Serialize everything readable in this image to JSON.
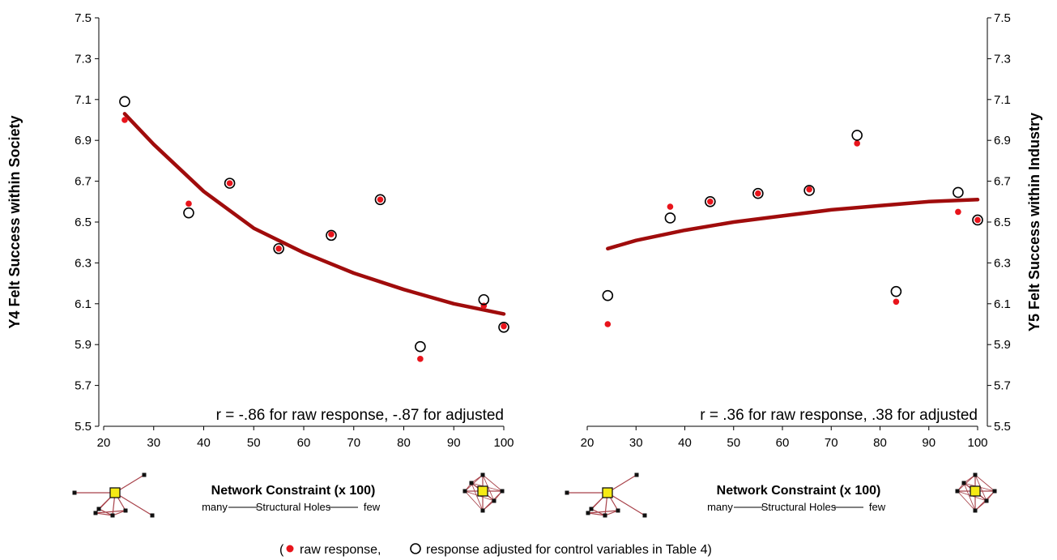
{
  "chart_data": [
    {
      "type": "scatter",
      "ylabel": "Y4 Felt Success within Society",
      "annotation": "r = -.86 for raw response, -.87 for adjusted",
      "x_title": "Network Constraint (x 100)",
      "x_subtitle_left": "many",
      "x_subtitle_mid": "Structural Holes",
      "x_subtitle_right": "few",
      "xlim": [
        20,
        100
      ],
      "ylim": [
        5.5,
        7.5
      ],
      "x_ticks": [
        "20",
        "30",
        "40",
        "50",
        "60",
        "70",
        "80",
        "90",
        "100"
      ],
      "y_ticks": [
        "5.5",
        "5.7",
        "5.9",
        "6.1",
        "6.3",
        "6.5",
        "6.7",
        "6.9",
        "7.1",
        "7.3",
        "7.5"
      ],
      "series": [
        {
          "name": "raw response",
          "marker": "filled-dot",
          "color": "#e8141b",
          "x": [
            24.2,
            37,
            45.2,
            55,
            65.5,
            75.3,
            83.3,
            96,
            100
          ],
          "y": [
            7.0,
            6.59,
            6.69,
            6.37,
            6.44,
            6.61,
            5.83,
            6.09,
            5.99
          ]
        },
        {
          "name": "response adjusted for control variables in Table 4",
          "marker": "open-circle",
          "color": "#000000",
          "x": [
            24.2,
            37,
            45.2,
            55,
            65.5,
            75.3,
            83.3,
            96,
            100
          ],
          "y": [
            7.09,
            6.545,
            6.69,
            6.37,
            6.435,
            6.61,
            5.89,
            6.12,
            5.985
          ]
        }
      ],
      "fit_curve": {
        "color": "#a00c0c",
        "x": [
          24.2,
          30,
          40,
          50,
          60,
          70,
          80,
          90,
          100
        ],
        "y": [
          7.03,
          6.88,
          6.65,
          6.47,
          6.35,
          6.25,
          6.17,
          6.1,
          6.05
        ]
      }
    },
    {
      "type": "scatter",
      "ylabel": "Y5 Felt Success within Industry",
      "annotation": "r = .36 for raw response, .38 for adjusted",
      "x_title": "Network Constraint (x 100)",
      "x_subtitle_left": "many",
      "x_subtitle_mid": "Structural Holes",
      "x_subtitle_right": "few",
      "xlim": [
        20,
        100
      ],
      "ylim": [
        5.5,
        7.5
      ],
      "x_ticks": [
        "20",
        "30",
        "40",
        "50",
        "60",
        "70",
        "80",
        "90",
        "100"
      ],
      "y_ticks": [
        "5.5",
        "5.7",
        "5.9",
        "6.1",
        "6.3",
        "6.5",
        "6.7",
        "6.9",
        "7.1",
        "7.3",
        "7.5"
      ],
      "series": [
        {
          "name": "raw response",
          "marker": "filled-dot",
          "color": "#e8141b",
          "x": [
            24.2,
            37,
            45.2,
            55,
            65.5,
            75.3,
            83.3,
            96,
            100
          ],
          "y": [
            6.0,
            6.575,
            6.6,
            6.64,
            6.66,
            6.885,
            6.11,
            6.55,
            6.51
          ]
        },
        {
          "name": "response adjusted for control variables in Table 4",
          "marker": "open-circle",
          "color": "#000000",
          "x": [
            24.2,
            37,
            45.2,
            55,
            65.5,
            75.3,
            83.3,
            96,
            100
          ],
          "y": [
            6.14,
            6.52,
            6.6,
            6.64,
            6.655,
            6.925,
            6.16,
            6.645,
            6.51
          ]
        }
      ],
      "fit_curve": {
        "color": "#a00c0c",
        "x": [
          24.2,
          30,
          40,
          50,
          60,
          70,
          80,
          90,
          100
        ],
        "y": [
          6.37,
          6.41,
          6.46,
          6.5,
          6.53,
          6.56,
          6.58,
          6.6,
          6.61
        ]
      }
    }
  ],
  "legend": {
    "open": "(",
    "raw_label": "raw response,",
    "adjusted_label": "response adjusted for control variables in Table 4)"
  }
}
